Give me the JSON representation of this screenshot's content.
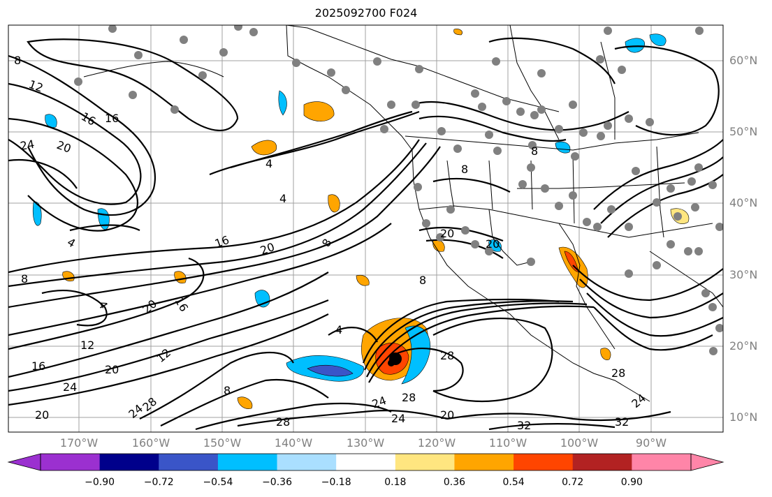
{
  "title": "2025092700 F024",
  "lat_labels": [
    "60°N",
    "50°N",
    "40°N",
    "30°N",
    "20°N",
    "10°N"
  ],
  "lon_labels": [
    "170°W",
    "160°W",
    "150°W",
    "140°W",
    "130°W",
    "120°W",
    "110°W",
    "100°W",
    "90°W"
  ],
  "colorbar": {
    "ticks": [
      "−0.90",
      "−0.72",
      "−0.54",
      "−0.36",
      "−0.18",
      "0.18",
      "0.36",
      "0.54",
      "0.72",
      "0.90"
    ],
    "colors": [
      "#9b30d0",
      "#00008b",
      "#3a55c8",
      "#00bfff",
      "#aadfff",
      "#ffffff",
      "#ffe680",
      "#ffa500",
      "#ff4500",
      "#b22222",
      "#ff85a8"
    ]
  },
  "contour_labels": [
    "8",
    "12",
    "16",
    "24",
    "20",
    "4",
    "16",
    "20",
    "8",
    "4",
    "16",
    "20",
    "12",
    "16",
    "12",
    "20",
    "24",
    "20",
    "24",
    "28",
    "28",
    "24",
    "4",
    "8",
    "28",
    "20",
    "28",
    "32",
    "24",
    "28",
    "32",
    "8",
    "8",
    "20",
    "20",
    "16",
    "8",
    "4",
    "24",
    "4",
    "8"
  ],
  "shading_colors": {
    "orange": "#ffa500",
    "red": "#ff4500",
    "cyan": "#00bfff",
    "blue": "#3a55c8",
    "yellow": "#ffe680"
  },
  "station_color": "#808080"
}
